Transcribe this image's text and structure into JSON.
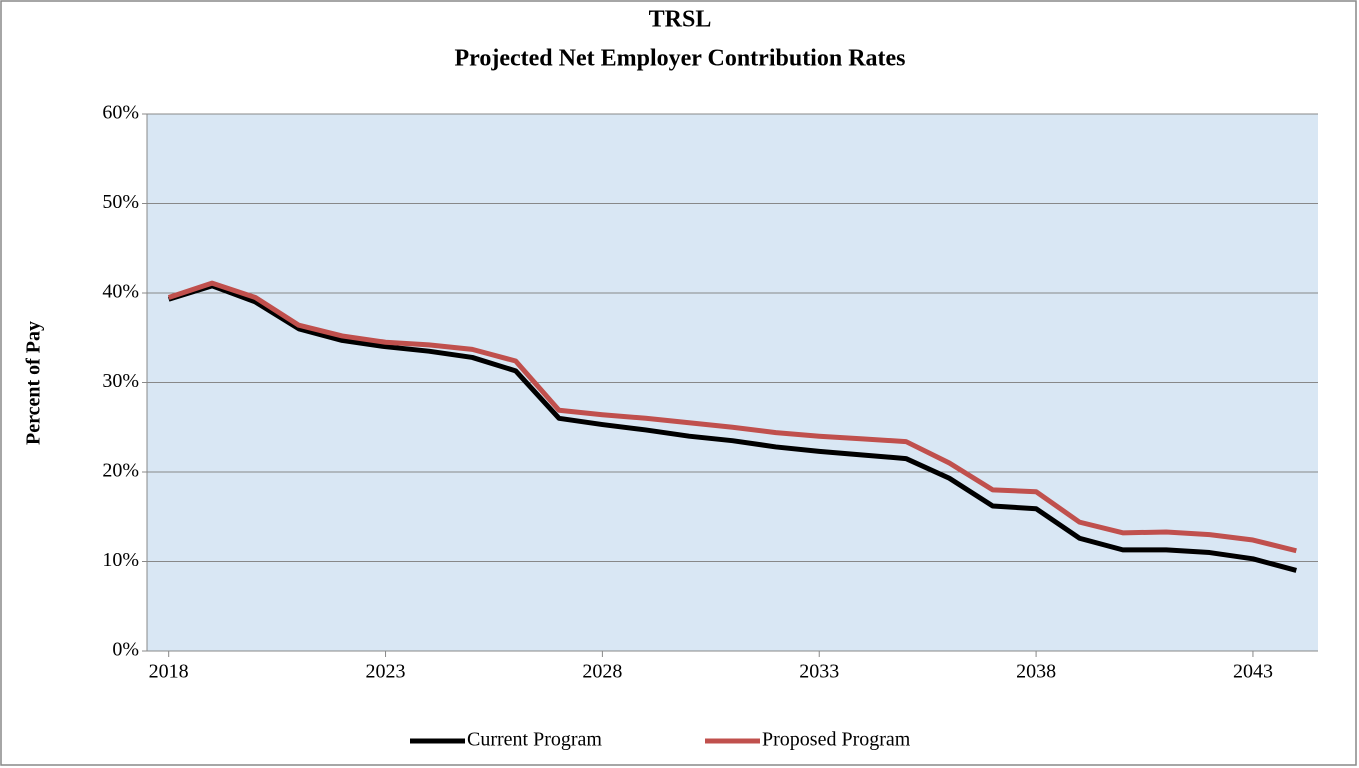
{
  "chart_data": {
    "type": "line",
    "title": "TRSL",
    "subtitle": "Projected Net Employer Contribution Rates",
    "y_label": "Percent of Pay",
    "x": [
      2018,
      2019,
      2020,
      2021,
      2022,
      2023,
      2024,
      2025,
      2026,
      2027,
      2028,
      2029,
      2030,
      2031,
      2032,
      2033,
      2034,
      2035,
      2036,
      2037,
      2038,
      2039,
      2040,
      2041,
      2042,
      2043,
      2044
    ],
    "xlim": [
      2017.5,
      2044.5
    ],
    "xticks": [
      2018,
      2023,
      2028,
      2033,
      2038,
      2043
    ],
    "ylim": [
      0,
      60
    ],
    "yticks": [
      {
        "value": 0,
        "label": "0%"
      },
      {
        "value": 10,
        "label": "10%"
      },
      {
        "value": 20,
        "label": "20%"
      },
      {
        "value": 30,
        "label": "30%"
      },
      {
        "value": 40,
        "label": "40%"
      },
      {
        "value": 50,
        "label": "50%"
      },
      {
        "value": 60,
        "label": "60%"
      }
    ],
    "grid": true,
    "legend": "bottom",
    "series": [
      {
        "name": "Current Program",
        "color": "#000000",
        "values": [
          39.3,
          40.8,
          39.0,
          36.0,
          34.7,
          34.0,
          33.5,
          32.8,
          31.3,
          26.0,
          25.3,
          24.7,
          24.0,
          23.5,
          22.8,
          22.3,
          21.9,
          21.5,
          19.3,
          16.2,
          15.9,
          12.6,
          11.3,
          11.3,
          11.0,
          10.3,
          9.0
        ]
      },
      {
        "name": "Proposed Program",
        "color": "#c0504d",
        "values": [
          39.5,
          41.1,
          39.5,
          36.4,
          35.2,
          34.5,
          34.2,
          33.7,
          32.4,
          26.9,
          26.4,
          26.0,
          25.5,
          25.0,
          24.4,
          24.0,
          23.7,
          23.4,
          21.0,
          18.0,
          17.8,
          14.4,
          13.2,
          13.3,
          13.0,
          12.4,
          11.2
        ]
      }
    ]
  }
}
